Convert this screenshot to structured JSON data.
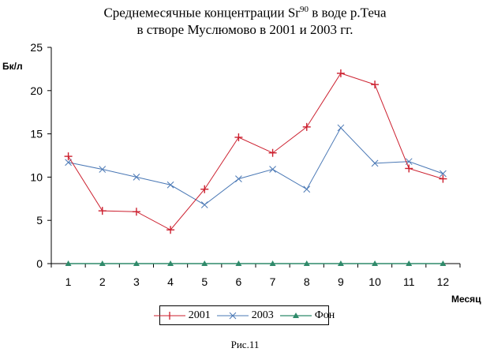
{
  "chart_data": {
    "type": "line",
    "title": "Среднемесячные концентрации Sr90 в воде р.Теча в створе Муслюмово в 2001 и 2003 гг.",
    "title_line1_prefix": "Среднемесячные концентрации Sr",
    "title_line1_sup": "90",
    "title_line1_suffix": " в воде р.Теча",
    "title_line2": "в створе Муслюмово в 2001 и 2003 гг.",
    "xlabel": "Месяц",
    "ylabel": "Бк/л",
    "categories": [
      "1",
      "2",
      "3",
      "4",
      "5",
      "6",
      "7",
      "8",
      "9",
      "10",
      "11",
      "12"
    ],
    "yticks": [
      0,
      5,
      10,
      15,
      20,
      25
    ],
    "ylim": [
      0,
      25
    ],
    "grid": false,
    "legend_position": "bottom",
    "series": [
      {
        "name": "2001",
        "color": "#cc1f2e",
        "marker": "plus",
        "values": [
          12.4,
          6.1,
          6.0,
          3.9,
          8.6,
          14.6,
          12.8,
          15.8,
          22.0,
          20.7,
          11.0,
          9.8
        ]
      },
      {
        "name": "2003",
        "color": "#4a78b5",
        "marker": "x",
        "values": [
          11.7,
          10.9,
          10.0,
          9.1,
          6.8,
          9.8,
          10.9,
          8.6,
          15.7,
          11.6,
          11.8,
          10.4
        ]
      },
      {
        "name": "Фон",
        "color": "#2f8a6a",
        "marker": "triangle",
        "values": [
          0,
          0,
          0,
          0,
          0,
          0,
          0,
          0,
          0,
          0,
          0,
          0
        ]
      }
    ]
  },
  "caption": "Рис.11"
}
